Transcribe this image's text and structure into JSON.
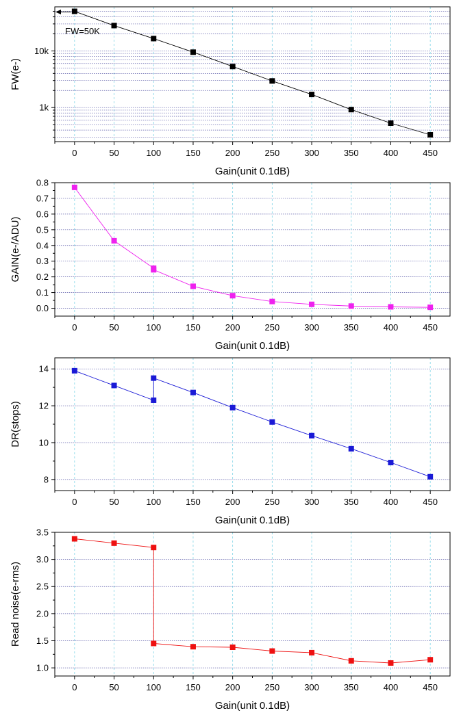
{
  "chart_data": [
    {
      "id": "fw",
      "type": "line",
      "xlabel": "Gain(unit 0.1dB)",
      "ylabel": "FW(e-)",
      "x_ticks": [
        0,
        50,
        100,
        150,
        200,
        250,
        300,
        350,
        400,
        450
      ],
      "xlim": [
        -25,
        475
      ],
      "y_scale": "log",
      "ylim": [
        250,
        60000
      ],
      "y_ticks": [
        {
          "v": 1000,
          "label": "1k"
        },
        {
          "v": 10000,
          "label": "10k"
        }
      ],
      "grid": true,
      "color": "#000000",
      "points": [
        [
          0,
          50000
        ],
        [
          50,
          28000
        ],
        [
          100,
          16500
        ],
        [
          150,
          9500
        ],
        [
          200,
          5300
        ],
        [
          250,
          2950
        ],
        [
          300,
          1700
        ],
        [
          350,
          920
        ],
        [
          400,
          530
        ],
        [
          450,
          330
        ]
      ],
      "annotation": {
        "text": "FW=50K",
        "x": 0,
        "y": 50000
      }
    },
    {
      "id": "gain",
      "type": "line",
      "xlabel": "Gain(unit 0.1dB)",
      "ylabel": "GAIN(e-/ADU)",
      "x_ticks": [
        0,
        50,
        100,
        150,
        200,
        250,
        300,
        350,
        400,
        450
      ],
      "xlim": [
        -25,
        475
      ],
      "ylim": [
        -0.05,
        0.8
      ],
      "y_ticks": [
        {
          "v": 0,
          "label": "0.0"
        },
        {
          "v": 0.1,
          "label": "0.1"
        },
        {
          "v": 0.2,
          "label": "0.2"
        },
        {
          "v": 0.3,
          "label": "0.3"
        },
        {
          "v": 0.4,
          "label": "0.4"
        },
        {
          "v": 0.5,
          "label": "0.5"
        },
        {
          "v": 0.6,
          "label": "0.6"
        },
        {
          "v": 0.7,
          "label": "0.7"
        },
        {
          "v": 0.8,
          "label": "0.8"
        }
      ],
      "grid": true,
      "color": "#ee22ee",
      "points": [
        [
          0,
          0.77
        ],
        [
          50,
          0.43
        ],
        [
          100,
          0.255
        ],
        [
          100,
          0.245
        ],
        [
          150,
          0.14
        ],
        [
          200,
          0.08
        ],
        [
          250,
          0.043
        ],
        [
          300,
          0.025
        ],
        [
          350,
          0.014
        ],
        [
          400,
          0.009
        ],
        [
          450,
          0.006
        ]
      ]
    },
    {
      "id": "dr",
      "type": "line",
      "xlabel": "Gain(unit 0.1dB)",
      "ylabel": "DR(stops)",
      "x_ticks": [
        0,
        50,
        100,
        150,
        200,
        250,
        300,
        350,
        400,
        450
      ],
      "xlim": [
        -25,
        475
      ],
      "ylim": [
        7.4,
        14.6
      ],
      "y_ticks": [
        {
          "v": 8,
          "label": "8"
        },
        {
          "v": 10,
          "label": "10"
        },
        {
          "v": 12,
          "label": "12"
        },
        {
          "v": 14,
          "label": "14"
        }
      ],
      "grid": true,
      "color": "#1a1ad6",
      "points": [
        [
          0,
          13.9
        ],
        [
          50,
          13.1
        ],
        [
          100,
          12.3
        ],
        [
          100,
          13.5
        ],
        [
          150,
          12.72
        ],
        [
          200,
          11.9
        ],
        [
          250,
          11.12
        ],
        [
          300,
          10.38
        ],
        [
          350,
          9.67
        ],
        [
          400,
          8.92
        ],
        [
          450,
          8.15
        ]
      ]
    },
    {
      "id": "noise",
      "type": "line",
      "xlabel": "Gain(unit 0.1dB)",
      "ylabel": "Read noise(e-rms)",
      "x_ticks": [
        0,
        50,
        100,
        150,
        200,
        250,
        300,
        350,
        400,
        450
      ],
      "xlim": [
        -25,
        475
      ],
      "ylim": [
        0.85,
        3.5
      ],
      "y_ticks": [
        {
          "v": 1.0,
          "label": "1.0"
        },
        {
          "v": 1.5,
          "label": "1.5"
        },
        {
          "v": 2.0,
          "label": "2.0"
        },
        {
          "v": 2.5,
          "label": "2.5"
        },
        {
          "v": 3.0,
          "label": "3.0"
        },
        {
          "v": 3.5,
          "label": "3.5"
        }
      ],
      "grid": true,
      "color": "#ee1111",
      "points": [
        [
          0,
          3.38
        ],
        [
          50,
          3.3
        ],
        [
          100,
          3.22
        ],
        [
          100,
          1.45
        ],
        [
          150,
          1.39
        ],
        [
          200,
          1.38
        ],
        [
          250,
          1.31
        ],
        [
          300,
          1.28
        ],
        [
          350,
          1.13
        ],
        [
          400,
          1.09
        ],
        [
          450,
          1.15
        ]
      ]
    }
  ]
}
